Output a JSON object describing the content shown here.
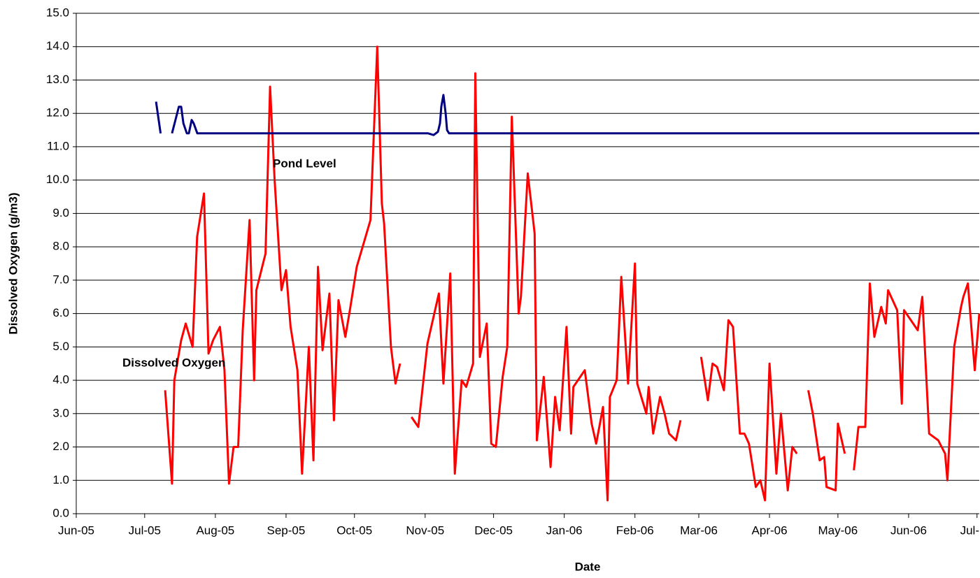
{
  "chart_data": {
    "type": "line",
    "xlabel": "Date",
    "ylabel": "Dissolved Oxygen (g/m3)",
    "xlim": [
      0,
      396
    ],
    "xticks": [
      {
        "value": 0,
        "label": "Jun-05"
      },
      {
        "value": 30,
        "label": "Jul-05"
      },
      {
        "value": 61,
        "label": "Aug-05"
      },
      {
        "value": 92,
        "label": "Sep-05"
      },
      {
        "value": 122,
        "label": "Oct-05"
      },
      {
        "value": 153,
        "label": "Nov-05"
      },
      {
        "value": 183,
        "label": "Dec-05"
      },
      {
        "value": 214,
        "label": "Jan-06"
      },
      {
        "value": 245,
        "label": "Feb-06"
      },
      {
        "value": 273,
        "label": "Mar-06"
      },
      {
        "value": 304,
        "label": "Apr-06"
      },
      {
        "value": 334,
        "label": "May-06"
      },
      {
        "value": 365,
        "label": "Jun-06"
      },
      {
        "value": 395,
        "label": "Jul-"
      }
    ],
    "ylim": [
      0,
      15
    ],
    "yticks": [
      {
        "value": 0,
        "label": "0.0"
      },
      {
        "value": 1,
        "label": "1.0"
      },
      {
        "value": 2,
        "label": "2.0"
      },
      {
        "value": 3,
        "label": "3.0"
      },
      {
        "value": 4,
        "label": "4.0"
      },
      {
        "value": 5,
        "label": "5.0"
      },
      {
        "value": 6,
        "label": "6.0"
      },
      {
        "value": 7,
        "label": "7.0"
      },
      {
        "value": 8,
        "label": "8.0"
      },
      {
        "value": 9,
        "label": "9.0"
      },
      {
        "value": 10,
        "label": "10.0"
      },
      {
        "value": 11,
        "label": "11.0"
      },
      {
        "value": 12,
        "label": "12.0"
      },
      {
        "value": 13,
        "label": "13.0"
      },
      {
        "value": 14,
        "label": "14.0"
      },
      {
        "value": 15,
        "label": "15.0"
      }
    ],
    "grid": true,
    "series": [
      {
        "name": "Dissolved Oxygen",
        "color": "#ff0000",
        "x": [
          39,
          42,
          43,
          46,
          48,
          51,
          53,
          56,
          58,
          60,
          63,
          65,
          67,
          69,
          71,
          73,
          76,
          78,
          79,
          83,
          85,
          87,
          90,
          92,
          94,
          97,
          99,
          102,
          104,
          106,
          108,
          111,
          113,
          115,
          118,
          120,
          123,
          126,
          129,
          132,
          134,
          135,
          138,
          140,
          142,
          null,
          147,
          150,
          154,
          159,
          161,
          164,
          166,
          169,
          171,
          174,
          175,
          177,
          180,
          182,
          184,
          187,
          189,
          191,
          194,
          195,
          198,
          201,
          202,
          205,
          208,
          210,
          212,
          215,
          217,
          218,
          223,
          226,
          228,
          231,
          233,
          234,
          237,
          239,
          242,
          245,
          246,
          250,
          251,
          253,
          256,
          258,
          260,
          263,
          265,
          null,
          274,
          277,
          279,
          281,
          284,
          286,
          288,
          291,
          293,
          295,
          298,
          300,
          302,
          304,
          307,
          309,
          312,
          314,
          316,
          null,
          321,
          323,
          326,
          328,
          329,
          333,
          334,
          337,
          null,
          341,
          343,
          346,
          348,
          350,
          353,
          355,
          356,
          360,
          362,
          363,
          369,
          371,
          374,
          378,
          381,
          382,
          385,
          388,
          389,
          391,
          394,
          396
        ],
        "values": [
          3.7,
          0.9,
          4.0,
          5.2,
          5.7,
          5.0,
          8.3,
          9.6,
          4.8,
          5.2,
          5.6,
          4.3,
          0.9,
          2.0,
          2.0,
          5.5,
          8.8,
          4.0,
          6.7,
          7.8,
          12.8,
          10.0,
          6.7,
          7.3,
          5.6,
          4.3,
          1.2,
          5.0,
          1.6,
          7.4,
          4.9,
          6.6,
          2.8,
          6.4,
          5.3,
          6.1,
          7.4,
          8.1,
          8.8,
          14.0,
          9.3,
          8.7,
          5.0,
          3.9,
          4.5,
          null,
          2.9,
          2.6,
          5.1,
          6.6,
          3.9,
          7.2,
          1.2,
          4.0,
          3.8,
          4.5,
          13.2,
          4.7,
          5.7,
          2.1,
          2.0,
          4.1,
          5.0,
          11.9,
          6.0,
          6.5,
          10.2,
          8.4,
          2.2,
          4.1,
          1.4,
          3.5,
          2.5,
          5.6,
          2.4,
          3.8,
          4.3,
          2.7,
          2.1,
          3.2,
          0.4,
          3.5,
          4.0,
          7.1,
          3.9,
          7.5,
          3.9,
          3.0,
          3.8,
          2.4,
          3.5,
          3.0,
          2.4,
          2.2,
          2.8,
          null,
          4.7,
          3.4,
          4.5,
          4.4,
          3.7,
          5.8,
          5.6,
          2.4,
          2.4,
          2.1,
          0.8,
          1.0,
          0.4,
          4.5,
          1.2,
          3.0,
          0.7,
          2.0,
          1.8,
          null,
          3.7,
          3.0,
          1.6,
          1.7,
          0.8,
          0.7,
          2.7,
          1.8,
          null,
          1.3,
          2.6,
          2.6,
          6.9,
          5.3,
          6.2,
          5.7,
          6.7,
          6.1,
          3.3,
          6.1,
          5.5,
          6.5,
          2.4,
          2.2,
          1.8,
          1.0,
          5.0,
          6.2,
          6.5,
          6.9,
          4.3,
          6.0
        ]
      },
      {
        "name": "Pond Level",
        "color": "#000080",
        "x": [
          35,
          37,
          null,
          42,
          45,
          46,
          47,
          48.5,
          49.4,
          50.6,
          51.5,
          53.1,
          55.5,
          150.6,
          154.3,
          156.7,
          158.6,
          159.5,
          160.1,
          161.0,
          162.0,
          162.6,
          163.5,
          166.0,
          396
        ],
        "values": [
          12.35,
          11.4,
          null,
          11.4,
          12.2,
          12.2,
          11.7,
          11.4,
          11.4,
          11.8,
          11.7,
          11.4,
          11.4,
          11.4,
          11.4,
          11.35,
          11.45,
          11.7,
          12.2,
          12.55,
          12.0,
          11.5,
          11.4,
          11.4,
          11.4
        ]
      }
    ]
  }
}
